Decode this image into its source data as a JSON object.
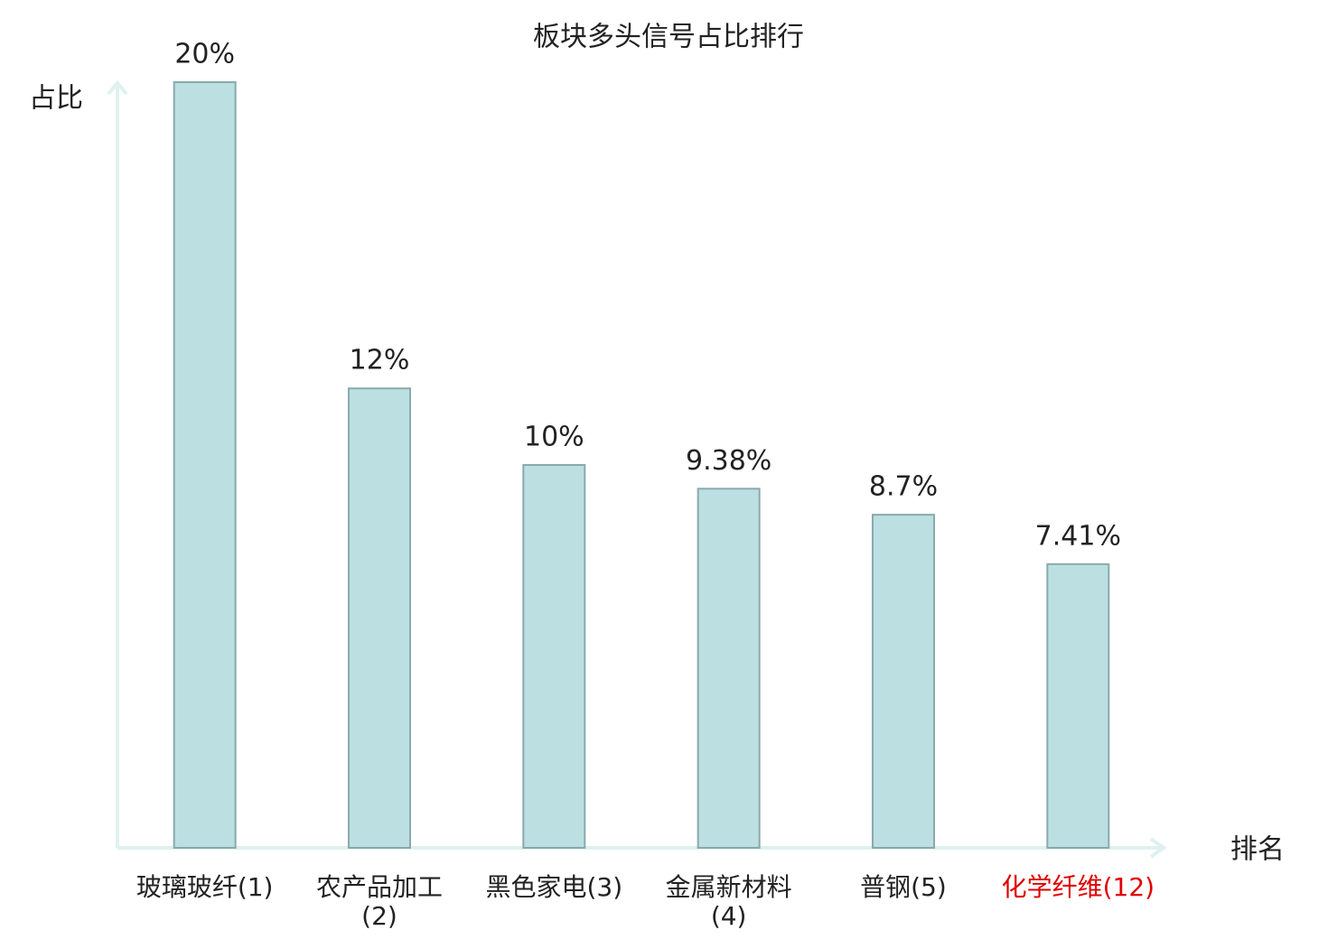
{
  "chart_data": {
    "type": "bar",
    "title": "板块多头信号占比排行",
    "y_label": "占比",
    "x_label": "排名",
    "categories": [
      "玻璃玻纤(1)",
      "农产品加工(2)",
      "黑色家电(3)",
      "金属新材料(4)",
      "普钢(5)",
      "化学纤维(12)"
    ],
    "values": [
      20,
      12,
      10,
      9.38,
      8.7,
      7.41
    ],
    "value_labels": [
      "20%",
      "12%",
      "10%",
      "9.38%",
      "8.7%",
      "7.41%"
    ],
    "color": "#bce0e2",
    "edge_color": "#8aa9ad",
    "label_colors": [
      "#222222",
      "#222222",
      "#222222",
      "#222222",
      "#222222",
      "#e00000"
    ],
    "ylim": [
      0,
      20
    ]
  }
}
